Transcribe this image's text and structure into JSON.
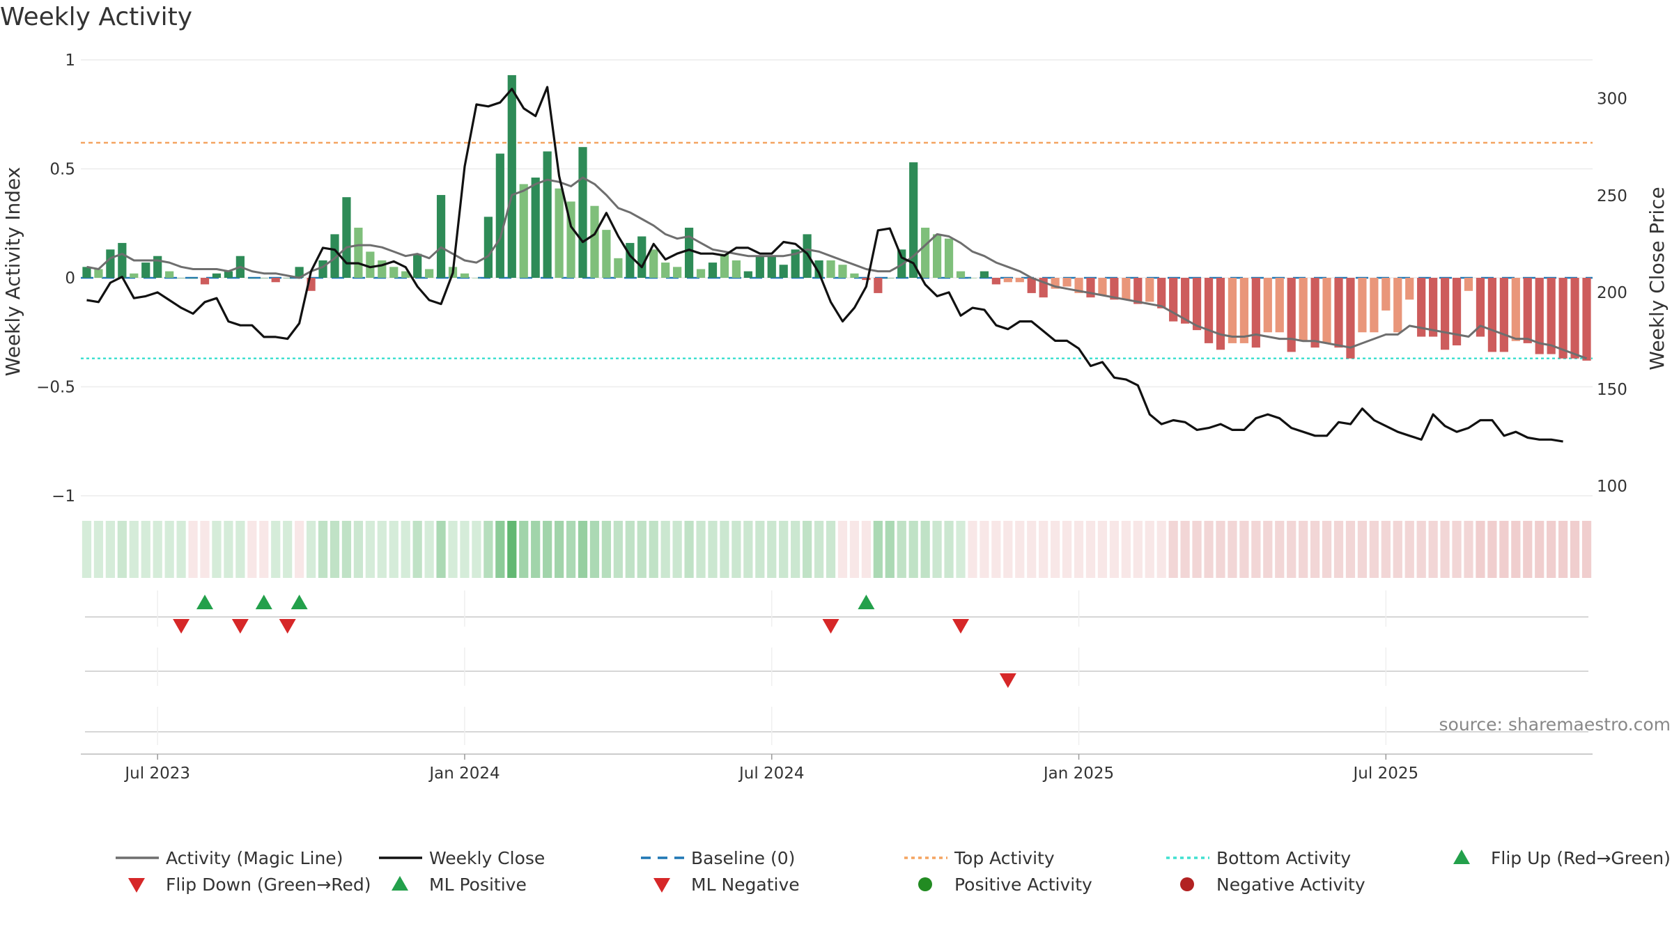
{
  "chart_data": {
    "type": "bar",
    "title": "Weekly Activity",
    "ylabel_left": "Weekly Activity Index",
    "ylabel_right": "Weekly Close Price",
    "x_tick_labels": [
      "Jul 2023",
      "Jan 2024",
      "Jul 2024",
      "Jan 2025",
      "Jul 2025"
    ],
    "x_tick_weeks": [
      6,
      32,
      58,
      84,
      110
    ],
    "y_left_ticks": [
      "1",
      "0.5",
      "0",
      "−0.5",
      "−1"
    ],
    "y_left_tick_values": [
      1,
      0.5,
      0,
      -0.5,
      -1
    ],
    "y_left_range": [
      -1,
      1
    ],
    "y_right_ticks": [
      "300",
      "250",
      "200",
      "150",
      "100"
    ],
    "y_right_tick_values": [
      300,
      250,
      200,
      150,
      100
    ],
    "y_right_range": [
      95,
      320
    ],
    "top_activity": 0.62,
    "bottom_activity": -0.37,
    "baseline": 0,
    "grid": true,
    "source": "source: sharemaestro.com",
    "colors": {
      "pos_strong": "#2e8b57",
      "pos_light": "#7fbf7b",
      "neg_strong": "#cd5c5c",
      "neg_light": "#e9967a",
      "magic_line": "#6e6e6e",
      "close_line": "#111111",
      "baseline": "#1f77b4",
      "top_line": "#f4a460",
      "bottom_line": "#40e0d0",
      "flip_up": "#23a04b",
      "flip_down": "#d62728"
    },
    "weekly_activity": [
      0.05,
      0.04,
      0.13,
      0.16,
      0.02,
      0.07,
      0.1,
      0.03,
      0.0,
      0.0,
      -0.03,
      0.02,
      0.03,
      0.1,
      0.0,
      0.0,
      -0.02,
      0.0,
      0.05,
      -0.06,
      0.08,
      0.2,
      0.37,
      0.23,
      0.12,
      0.08,
      0.05,
      0.03,
      0.11,
      0.04,
      0.38,
      0.05,
      0.02,
      0.0,
      0.28,
      0.57,
      0.93,
      0.43,
      0.46,
      0.58,
      0.41,
      0.35,
      0.6,
      0.33,
      0.22,
      0.09,
      0.16,
      0.19,
      0.13,
      0.07,
      0.05,
      0.23,
      0.04,
      0.07,
      0.11,
      0.08,
      0.03,
      0.1,
      0.1,
      0.06,
      0.13,
      0.2,
      0.08,
      0.08,
      0.06,
      0.02,
      -0.01,
      -0.07,
      0.0,
      0.13,
      0.53,
      0.23,
      0.2,
      0.18,
      0.03,
      0.0,
      0.03,
      -0.03,
      -0.02,
      -0.02,
      -0.07,
      -0.09,
      -0.05,
      -0.04,
      -0.07,
      -0.09,
      -0.08,
      -0.1,
      -0.1,
      -0.12,
      -0.11,
      -0.14,
      -0.2,
      -0.21,
      -0.24,
      -0.3,
      -0.33,
      -0.3,
      -0.3,
      -0.32,
      -0.25,
      -0.25,
      -0.34,
      -0.29,
      -0.32,
      -0.3,
      -0.32,
      -0.37,
      -0.25,
      -0.25,
      -0.15,
      -0.25,
      -0.1,
      -0.27,
      -0.27,
      -0.33,
      -0.31,
      -0.06,
      -0.27,
      -0.34,
      -0.34,
      -0.29,
      -0.3,
      -0.35,
      -0.35,
      -0.37,
      -0.37,
      -0.38
    ],
    "bar_shade": [
      "d",
      "l",
      "d",
      "d",
      "l",
      "d",
      "d",
      "l",
      "d",
      "d",
      "d",
      "d",
      "d",
      "d",
      "d",
      "d",
      "d",
      "d",
      "d",
      "d",
      "d",
      "d",
      "d",
      "l",
      "l",
      "l",
      "l",
      "l",
      "d",
      "l",
      "d",
      "l",
      "l",
      "l",
      "d",
      "d",
      "d",
      "l",
      "d",
      "d",
      "l",
      "l",
      "d",
      "l",
      "l",
      "l",
      "d",
      "d",
      "l",
      "l",
      "l",
      "d",
      "l",
      "d",
      "l",
      "l",
      "d",
      "d",
      "d",
      "d",
      "d",
      "d",
      "d",
      "l",
      "l",
      "l",
      "d",
      "d",
      "d",
      "d",
      "d",
      "l",
      "l",
      "l",
      "l",
      "l",
      "d",
      "d",
      "l",
      "l",
      "d",
      "d",
      "l",
      "l",
      "l",
      "d",
      "l",
      "d",
      "l",
      "d",
      "l",
      "d",
      "d",
      "d",
      "d",
      "d",
      "d",
      "l",
      "l",
      "d",
      "l",
      "l",
      "d",
      "l",
      "d",
      "l",
      "d",
      "d",
      "l",
      "l",
      "l",
      "l",
      "l",
      "d",
      "d",
      "d",
      "d",
      "l",
      "d",
      "d",
      "d",
      "l",
      "d",
      "d",
      "d",
      "d",
      "d",
      "d"
    ],
    "magic_line": [
      0.05,
      0.04,
      0.09,
      0.11,
      0.08,
      0.08,
      0.08,
      0.07,
      0.05,
      0.04,
      0.04,
      0.04,
      0.03,
      0.05,
      0.03,
      0.02,
      0.02,
      0.01,
      0.0,
      0.03,
      0.05,
      0.09,
      0.14,
      0.15,
      0.15,
      0.14,
      0.12,
      0.1,
      0.11,
      0.09,
      0.14,
      0.11,
      0.08,
      0.07,
      0.1,
      0.18,
      0.38,
      0.4,
      0.43,
      0.45,
      0.44,
      0.42,
      0.46,
      0.43,
      0.38,
      0.32,
      0.3,
      0.27,
      0.24,
      0.2,
      0.18,
      0.19,
      0.16,
      0.13,
      0.12,
      0.11,
      0.1,
      0.1,
      0.1,
      0.1,
      0.11,
      0.13,
      0.12,
      0.1,
      0.08,
      0.06,
      0.04,
      0.03,
      0.03,
      0.06,
      0.1,
      0.15,
      0.2,
      0.19,
      0.16,
      0.12,
      0.1,
      0.07,
      0.05,
      0.03,
      0.0,
      -0.02,
      -0.04,
      -0.05,
      -0.06,
      -0.07,
      -0.08,
      -0.09,
      -0.1,
      -0.11,
      -0.12,
      -0.13,
      -0.16,
      -0.19,
      -0.22,
      -0.24,
      -0.26,
      -0.27,
      -0.27,
      -0.26,
      -0.27,
      -0.28,
      -0.28,
      -0.29,
      -0.29,
      -0.3,
      -0.31,
      -0.32,
      -0.3,
      -0.28,
      -0.26,
      -0.26,
      -0.22,
      -0.23,
      -0.24,
      -0.25,
      -0.26,
      -0.27,
      -0.22,
      -0.24,
      -0.26,
      -0.28,
      -0.28,
      -0.3,
      -0.31,
      -0.33,
      -0.35,
      -0.37
    ],
    "weekly_close": [
      196,
      195,
      205,
      208,
      197,
      198,
      200,
      196,
      192,
      189,
      195,
      197,
      185,
      183,
      183,
      177,
      177,
      176,
      184,
      211,
      223,
      222,
      215,
      215,
      213,
      214,
      216,
      213,
      203,
      196,
      194,
      210,
      265,
      297,
      296,
      298,
      305,
      295,
      291,
      306,
      260,
      234,
      226,
      230,
      241,
      229,
      219,
      213,
      225,
      217,
      220,
      222,
      220,
      220,
      219,
      223,
      223,
      220,
      220,
      226,
      225,
      220,
      210,
      195,
      185,
      192,
      203,
      232,
      233,
      218,
      215,
      204,
      198,
      200,
      188,
      192,
      191,
      183,
      181,
      185,
      185,
      180,
      175,
      175,
      171,
      162,
      164,
      156,
      155,
      152,
      137,
      132,
      134,
      133,
      129,
      130,
      132,
      129,
      129,
      135,
      137,
      135,
      130,
      128,
      126,
      126,
      133,
      132,
      140,
      134,
      131,
      128,
      126,
      124,
      137,
      131,
      128,
      130,
      134,
      134,
      126,
      128,
      125,
      124,
      124,
      123
    ],
    "flip_up_weeks": [
      10,
      15,
      18,
      66
    ],
    "flip_down_weeks": [
      8,
      13,
      17,
      63,
      74
    ],
    "ml_negative_weeks": [
      78
    ],
    "strip_values": [
      0.2,
      0.2,
      0.2,
      0.25,
      0.2,
      0.2,
      0.2,
      0.2,
      0.2,
      -0.15,
      -0.15,
      0.2,
      0.2,
      0.2,
      -0.15,
      -0.15,
      0.2,
      0.2,
      -0.15,
      0.2,
      0.3,
      0.3,
      0.3,
      0.25,
      0.2,
      0.2,
      0.2,
      0.2,
      0.3,
      0.2,
      0.4,
      0.2,
      0.2,
      0.2,
      0.35,
      0.55,
      0.75,
      0.45,
      0.45,
      0.45,
      0.45,
      0.4,
      0.5,
      0.4,
      0.35,
      0.3,
      0.3,
      0.3,
      0.3,
      0.25,
      0.25,
      0.3,
      0.25,
      0.25,
      0.25,
      0.25,
      0.25,
      0.25,
      0.25,
      0.25,
      0.25,
      0.3,
      0.25,
      0.25,
      -0.15,
      -0.15,
      -0.15,
      0.4,
      0.4,
      0.3,
      0.3,
      0.3,
      0.25,
      0.25,
      0.2,
      -0.15,
      -0.15,
      -0.15,
      -0.15,
      -0.15,
      -0.15,
      -0.15,
      -0.15,
      -0.15,
      -0.15,
      -0.15,
      -0.15,
      -0.15,
      -0.15,
      -0.15,
      -0.15,
      -0.15,
      -0.25,
      -0.25,
      -0.25,
      -0.25,
      -0.25,
      -0.25,
      -0.25,
      -0.25,
      -0.25,
      -0.25,
      -0.25,
      -0.25,
      -0.25,
      -0.25,
      -0.25,
      -0.25,
      -0.25,
      -0.25,
      -0.25,
      -0.25,
      -0.25,
      -0.25,
      -0.25,
      -0.25,
      -0.25,
      -0.25,
      -0.3,
      -0.3,
      -0.3,
      -0.3,
      -0.3,
      -0.3,
      -0.3,
      -0.3,
      -0.3,
      -0.3
    ],
    "legend": [
      {
        "label": "Activity (Magic Line)",
        "kind": "line",
        "color": "#6e6e6e",
        "dash": "none"
      },
      {
        "label": "Weekly Close",
        "kind": "line",
        "color": "#111111",
        "dash": "none"
      },
      {
        "label": "Baseline (0)",
        "kind": "line",
        "color": "#1f77b4",
        "dash": "dash"
      },
      {
        "label": "Top Activity",
        "kind": "line",
        "color": "#f4a460",
        "dash": "dot"
      },
      {
        "label": "Bottom Activity",
        "kind": "line",
        "color": "#40e0d0",
        "dash": "dot"
      },
      {
        "label": "Flip Up (Red→Green)",
        "kind": "tri-up",
        "color": "#23a04b",
        "dash": "none"
      },
      {
        "label": "Flip Down (Green→Red)",
        "kind": "tri-down",
        "color": "#d62728",
        "dash": "none"
      },
      {
        "label": "ML Positive",
        "kind": "tri-up",
        "color": "#23a04b",
        "dash": "none"
      },
      {
        "label": "ML Negative",
        "kind": "tri-down",
        "color": "#d62728",
        "dash": "none"
      },
      {
        "label": "Positive Activity",
        "kind": "circle",
        "color": "#228b22",
        "dash": "none"
      },
      {
        "label": "Negative Activity",
        "kind": "circle",
        "color": "#b22222",
        "dash": "none"
      }
    ]
  }
}
